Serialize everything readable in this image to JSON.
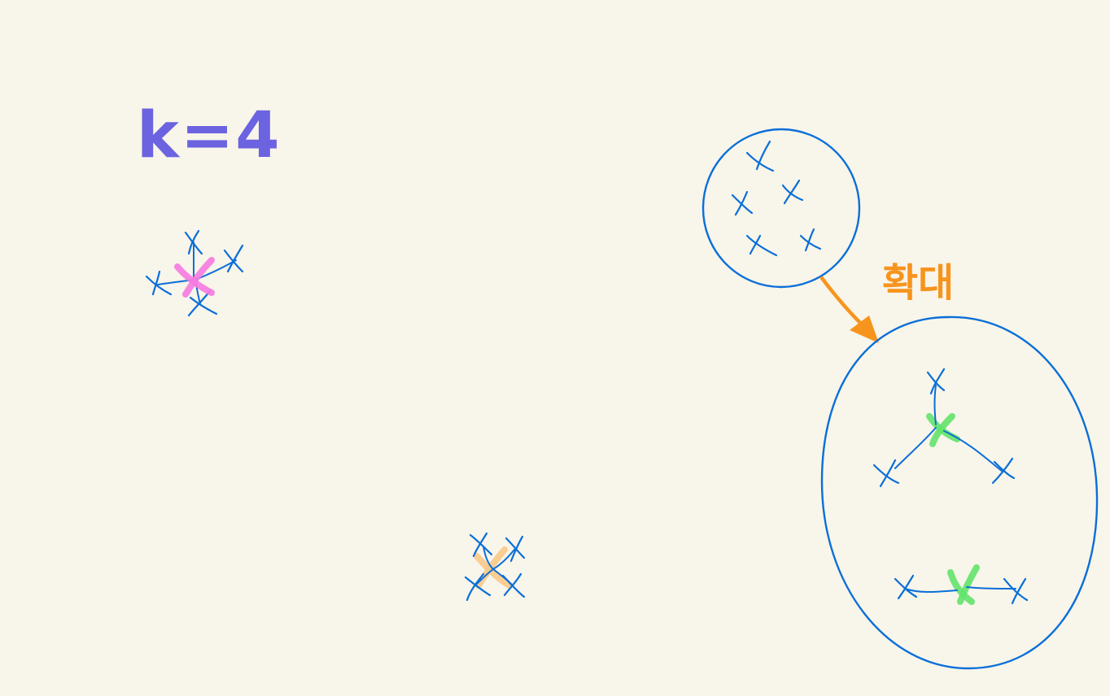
{
  "k_label": "k=4",
  "zoom_label": "확대",
  "colors": {
    "background": "#f8f5ea",
    "point": "#0a6fd8",
    "k_label": "#6b63e0",
    "zoom_label": "#f7941d",
    "arrow": "#f7941d",
    "centroid_pink": "#f57ae0",
    "centroid_orange": "#f9c98a",
    "centroid_green": "#62e36a"
  },
  "icons": {
    "data_point": "x-mark",
    "centroid": "thick-x-mark",
    "arrow": "arrow-down-right"
  }
}
